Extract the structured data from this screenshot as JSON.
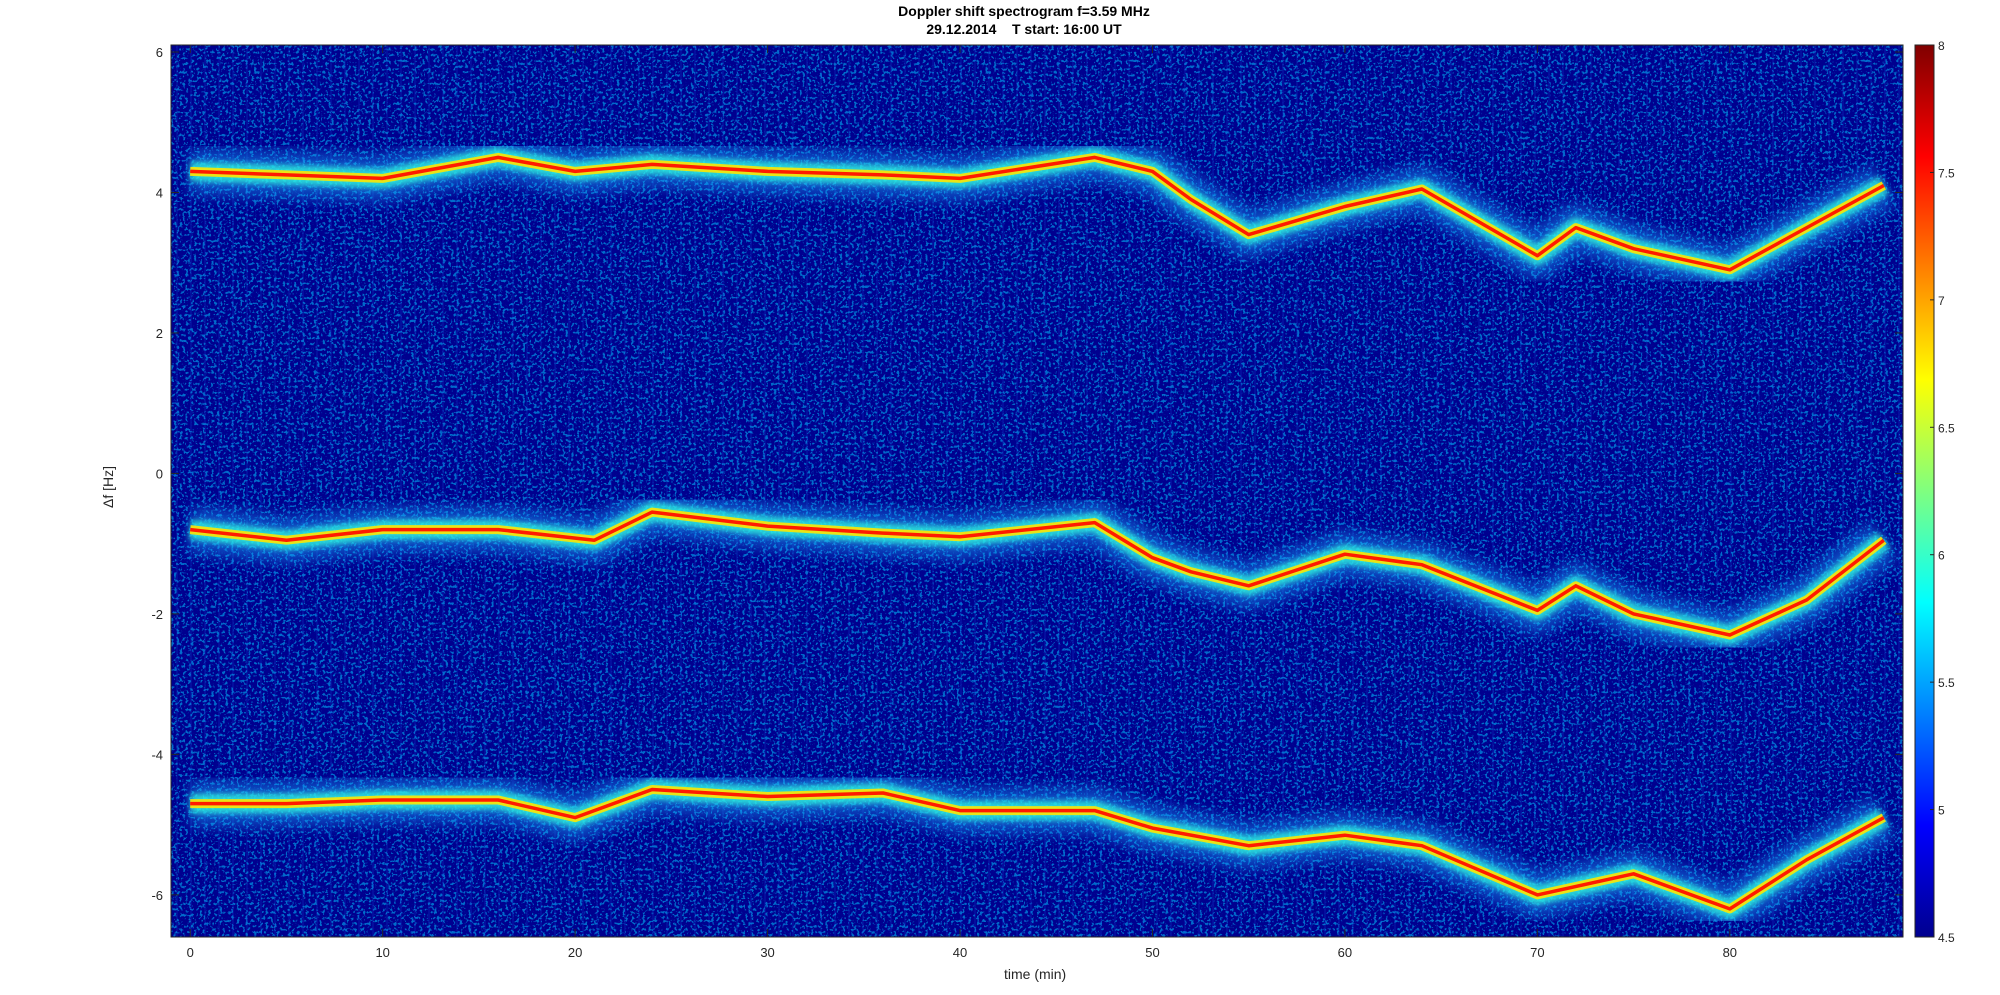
{
  "chart_data": {
    "type": "heatmap",
    "title": "Doppler shift spectrogram f=3.59 MHz",
    "subtitle": "29.12.2014    T start: 16:00 UT",
    "xlabel": "time (min)",
    "ylabel": "Δf [Hz]",
    "xlim": [
      -1,
      89
    ],
    "ylim": [
      -6.6,
      6.1
    ],
    "xticks": [
      "0",
      "10",
      "20",
      "30",
      "40",
      "50",
      "60",
      "70",
      "80"
    ],
    "xtick_values": [
      0,
      10,
      20,
      30,
      40,
      50,
      60,
      70,
      80
    ],
    "yticks": [
      "6",
      "4",
      "2",
      "0",
      "-2",
      "-4",
      "-6"
    ],
    "ytick_values": [
      6,
      4,
      2,
      0,
      -2,
      -4,
      -6
    ],
    "colorbar": {
      "colormap": "jet",
      "range": [
        4.5,
        8
      ],
      "ticks": [
        "8",
        "7.5",
        "7",
        "6.5",
        "6",
        "5.5",
        "5",
        "4.5"
      ],
      "tick_values": [
        8,
        7.5,
        7,
        6.5,
        6,
        5.5,
        5,
        4.5
      ]
    },
    "series": [
      {
        "x": [
          0,
          5,
          10,
          16,
          20,
          24,
          30,
          36,
          40,
          47,
          50,
          52,
          55,
          60,
          64,
          70,
          72,
          75,
          80,
          84,
          88
        ],
        "y": [
          4.3,
          4.25,
          4.2,
          4.5,
          4.3,
          4.4,
          4.3,
          4.25,
          4.2,
          4.5,
          4.3,
          3.9,
          3.4,
          3.8,
          4.05,
          3.1,
          3.5,
          3.2,
          2.9,
          3.5,
          4.1
        ]
      },
      {
        "x": [
          0,
          5,
          10,
          16,
          21,
          24,
          30,
          36,
          40,
          47,
          50,
          52,
          55,
          60,
          64,
          70,
          72,
          75,
          80,
          84,
          88
        ],
        "y": [
          -0.8,
          -0.95,
          -0.8,
          -0.8,
          -0.95,
          -0.55,
          -0.75,
          -0.85,
          -0.9,
          -0.7,
          -1.2,
          -1.4,
          -1.6,
          -1.15,
          -1.3,
          -1.95,
          -1.6,
          -2.0,
          -2.3,
          -1.8,
          -0.95
        ]
      },
      {
        "x": [
          0,
          5,
          10,
          16,
          20,
          24,
          30,
          36,
          40,
          47,
          50,
          55,
          60,
          64,
          70,
          75,
          80,
          84,
          88
        ],
        "y": [
          -4.7,
          -4.7,
          -4.65,
          -4.65,
          -4.9,
          -4.5,
          -4.6,
          -4.55,
          -4.8,
          -4.8,
          -5.05,
          -5.3,
          -5.15,
          -5.3,
          -6.0,
          -5.7,
          -6.2,
          -5.5,
          -4.9
        ]
      }
    ]
  }
}
